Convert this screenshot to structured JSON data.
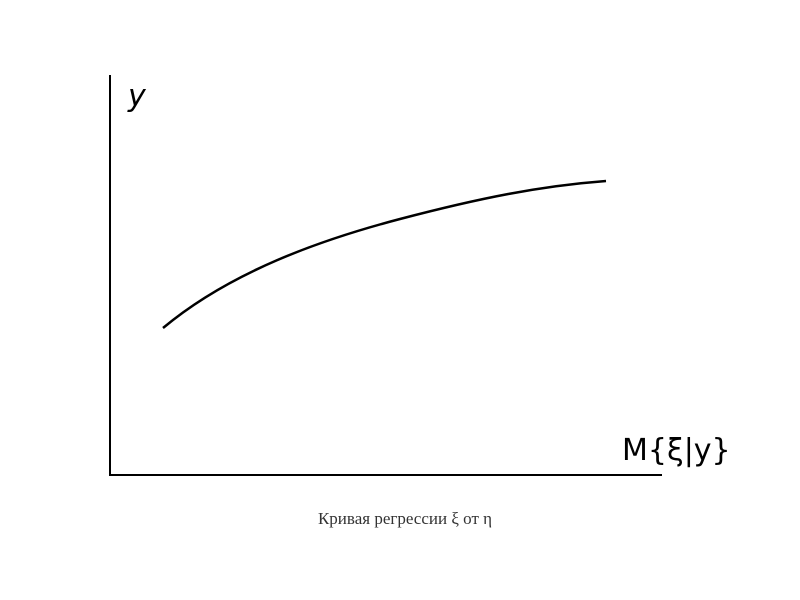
{
  "axes": {
    "y_label": "y",
    "x_label": "M{ξ|y}"
  },
  "caption": "Кривая регрессии ξ от η"
}
